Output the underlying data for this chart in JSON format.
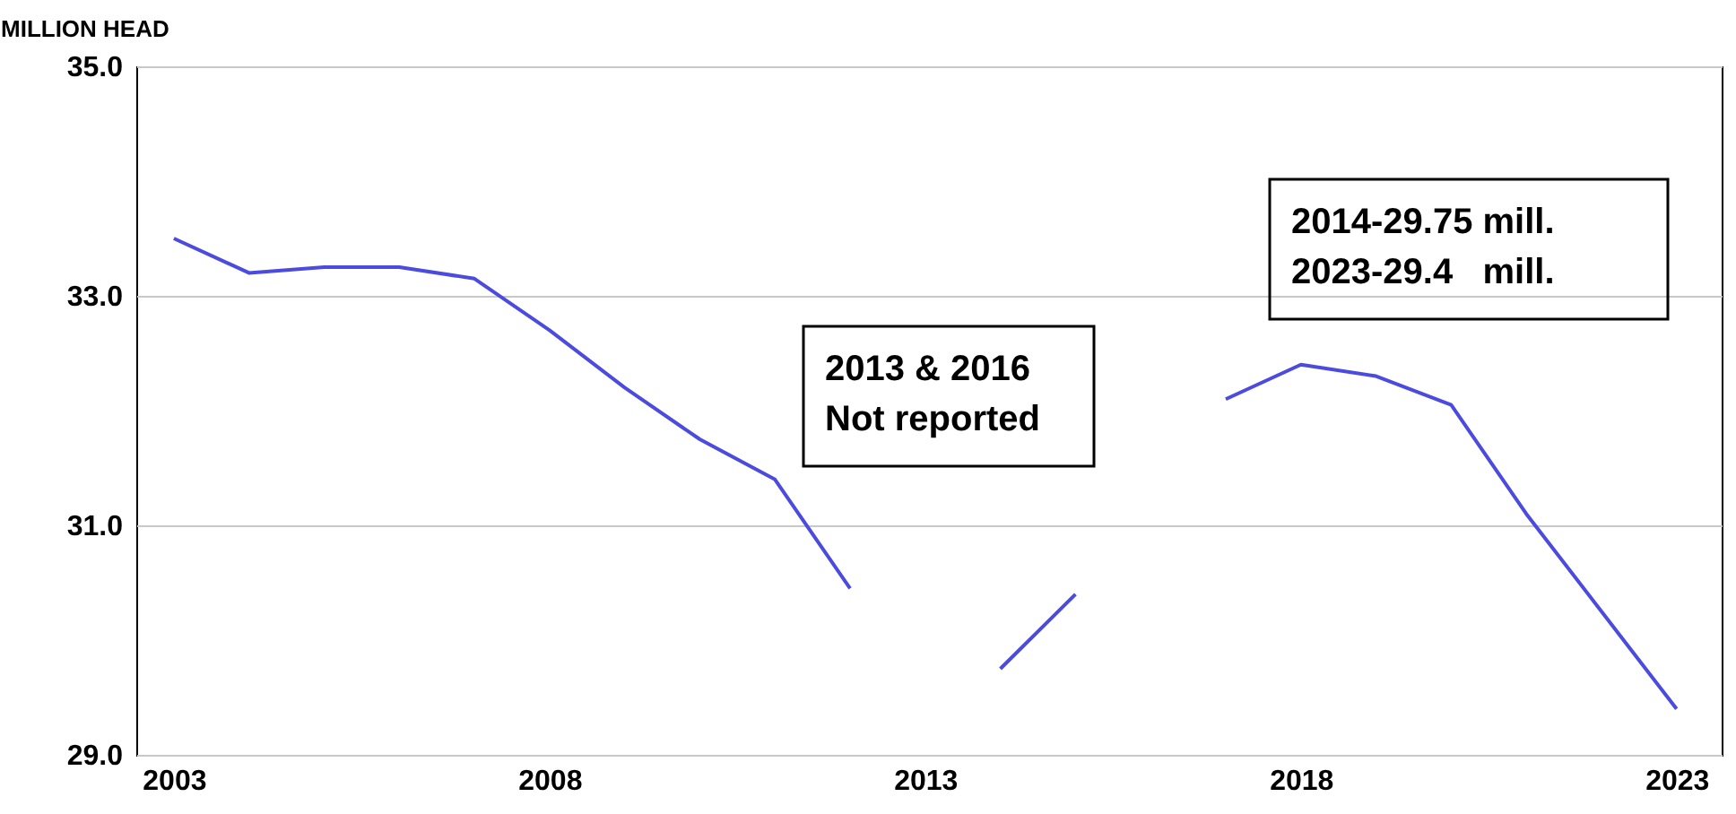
{
  "chart_data": {
    "type": "line",
    "ylabel": "MILLION HEAD",
    "x": [
      2003,
      2004,
      2005,
      2006,
      2007,
      2008,
      2009,
      2010,
      2011,
      2012,
      2013,
      2014,
      2015,
      2016,
      2017,
      2018,
      2019,
      2020,
      2021,
      2022,
      2023
    ],
    "series": [
      {
        "color": "#4b4bdf",
        "values": [
          33.5,
          33.2,
          33.25,
          33.25,
          33.15,
          32.7,
          32.2,
          31.75,
          31.4,
          30.45,
          null,
          29.75,
          30.4,
          null,
          32.1,
          32.4,
          32.3,
          32.05,
          31.1,
          30.25,
          29.4
        ]
      }
    ],
    "xlim": [
      2002.5,
      2023.6
    ],
    "xticks": [
      2003,
      2008,
      2013,
      2018,
      2023
    ],
    "ylim": [
      29,
      35
    ],
    "yticks": [
      {
        "value": 29,
        "label": "29.0"
      },
      {
        "value": 31,
        "label": "31.0"
      },
      {
        "value": 33,
        "label": "33.0"
      },
      {
        "value": 35,
        "label": "35.0"
      }
    ],
    "grid": "y",
    "line_style": "solid",
    "marker": "none",
    "annotations": [
      "2013 & 2016\nNot reported",
      "2014-29.75 mill.\n2023-29.4   mill."
    ]
  }
}
